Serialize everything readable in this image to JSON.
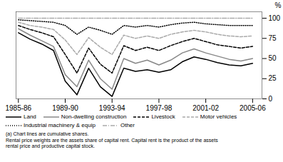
{
  "chart_data": {
    "type": "line",
    "ylabel": "%",
    "annotations": [
      "(a) Chart lines are cumulative shares.",
      "Rental price weights are the assets share of capital rent. Capital rent is the product of the assets",
      "rental price and productive capital stock."
    ],
    "x": [
      1985.5,
      1986.5,
      1987.5,
      1988.5,
      1989.5,
      1990.5,
      1991.5,
      1992.5,
      1993.5,
      1994.5,
      1995.5,
      1996.5,
      1997.5,
      1998.5,
      1999.5,
      2000.5,
      2001.5,
      2002.5,
      2003.5,
      2004.5,
      2005.5
    ],
    "series": [
      {
        "name": "Land",
        "color": "#000000",
        "line_style": "solid",
        "values": [
          82,
          74,
          68,
          60,
          22,
          5,
          38,
          15,
          3,
          38,
          34,
          36,
          33,
          36,
          46,
          52,
          49,
          45,
          42,
          41,
          44
        ]
      },
      {
        "name": "Non-dwelling construction",
        "color": "#888888",
        "line_style": "solid",
        "values": [
          87,
          79,
          72,
          65,
          30,
          15,
          48,
          25,
          12,
          50,
          44,
          48,
          42,
          48,
          57,
          62,
          57,
          53,
          49,
          47,
          50
        ]
      },
      {
        "name": "Livestock",
        "color": "#000000",
        "line_style": "dashed",
        "values": [
          91,
          86,
          82,
          77,
          55,
          32,
          63,
          43,
          32,
          66,
          60,
          64,
          60,
          66,
          71,
          75,
          71,
          67,
          65,
          63,
          65
        ]
      },
      {
        "name": "Motor vehicles",
        "color": "#aaaaaa",
        "line_style": "dashed",
        "values": [
          95,
          91,
          89,
          86,
          73,
          55,
          76,
          64,
          55,
          79,
          75,
          78,
          75,
          80,
          83,
          85,
          83,
          80,
          78,
          77,
          78
        ]
      },
      {
        "name": "Industrial machinery & equip",
        "color": "#000000",
        "line_style": "dotted",
        "values": [
          98,
          97,
          96,
          95,
          91,
          80,
          89,
          85,
          80,
          91,
          89,
          91,
          89,
          92,
          94,
          95,
          93,
          92,
          91,
          91,
          91
        ]
      },
      {
        "name": "Other",
        "color": "#aaaaaa",
        "line_style": "dashdot",
        "values": [
          100,
          100,
          100,
          100,
          100,
          100,
          100,
          100,
          100,
          100,
          100,
          100,
          100,
          100,
          100,
          100,
          100,
          100,
          100,
          100,
          100
        ]
      }
    ],
    "xlim": [
      1985.3,
      2006.3
    ],
    "xticks": [
      {
        "value": 1985.5,
        "label": "1985-86"
      },
      {
        "value": 1989.5,
        "label": "1989-90"
      },
      {
        "value": 1993.5,
        "label": "1993-94"
      },
      {
        "value": 1997.5,
        "label": "1997-98"
      },
      {
        "value": 2001.5,
        "label": "2001-02"
      },
      {
        "value": 2005.5,
        "label": "2005-06"
      }
    ],
    "ylim": [
      0,
      108
    ],
    "yticks": [
      0,
      25,
      50,
      75,
      100
    ],
    "grid": false,
    "legend": "bottom"
  }
}
